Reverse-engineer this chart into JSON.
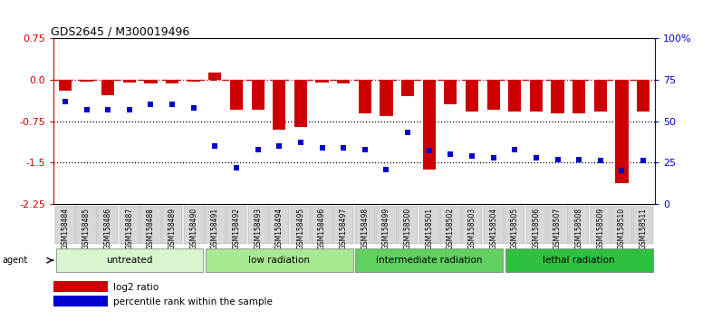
{
  "title": "GDS2645 / M300019496",
  "samples": [
    "GSM158484",
    "GSM158485",
    "GSM158486",
    "GSM158487",
    "GSM158488",
    "GSM158489",
    "GSM158490",
    "GSM158491",
    "GSM158492",
    "GSM158493",
    "GSM158494",
    "GSM158495",
    "GSM158496",
    "GSM158497",
    "GSM158498",
    "GSM158499",
    "GSM158500",
    "GSM158501",
    "GSM158502",
    "GSM158503",
    "GSM158504",
    "GSM158505",
    "GSM158506",
    "GSM158507",
    "GSM158508",
    "GSM158509",
    "GSM158510",
    "GSM158511"
  ],
  "log2_ratio": [
    -0.2,
    -0.03,
    -0.28,
    -0.05,
    -0.07,
    -0.06,
    -0.04,
    0.13,
    -0.55,
    -0.55,
    -0.9,
    -0.85,
    -0.05,
    -0.06,
    -0.6,
    -0.65,
    -0.3,
    -1.62,
    -0.45,
    -0.58,
    -0.55,
    -0.58,
    -0.58,
    -0.6,
    -0.6,
    -0.58,
    -1.88,
    -0.58
  ],
  "percentile": [
    62,
    57,
    57,
    57,
    60,
    60,
    58,
    35,
    22,
    33,
    35,
    37,
    34,
    34,
    33,
    21,
    43,
    32,
    30,
    29,
    28,
    33,
    28,
    27,
    27,
    26,
    20,
    26
  ],
  "groups": [
    {
      "label": "untreated",
      "start": 0,
      "end": 6,
      "color": "#d8f5d0"
    },
    {
      "label": "low radiation",
      "start": 7,
      "end": 13,
      "color": "#a8e890"
    },
    {
      "label": "intermediate radiation",
      "start": 14,
      "end": 20,
      "color": "#60d060"
    },
    {
      "label": "lethal radiation",
      "start": 21,
      "end": 27,
      "color": "#30c040"
    }
  ],
  "ylim_left": [
    -2.25,
    0.75
  ],
  "ylim_right": [
    0,
    100
  ],
  "yticks_left": [
    0.75,
    0.0,
    -0.75,
    -1.5,
    -2.25
  ],
  "yticks_right": [
    0,
    25,
    50,
    75,
    100
  ],
  "bar_color": "#cc0000",
  "dot_color": "#0000cc",
  "dotted_lines": [
    -0.75,
    -1.5
  ]
}
